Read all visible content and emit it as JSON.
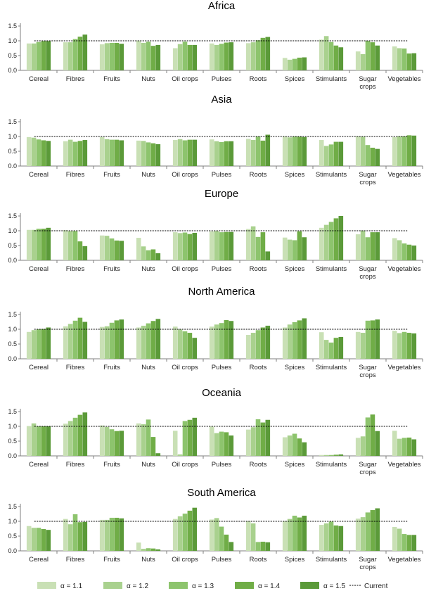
{
  "legend": {
    "series": [
      "α = 1.1",
      "α = 1.2",
      "α = 1.3",
      "α = 1.4",
      "α = 1.5"
    ],
    "current": "Current"
  },
  "colors": [
    "#c9e0b5",
    "#a9d18e",
    "#8dc46d",
    "#70ad47",
    "#5b9a39"
  ],
  "chart_data": [
    {
      "type": "bar",
      "title": "Africa",
      "ylim": [
        0,
        1.5
      ],
      "yticks": [
        "0.0",
        "0.5",
        "1.0",
        "1.5"
      ],
      "reference": 1.0,
      "categories": [
        "Cereal",
        "Fibres",
        "Fruits",
        "Nuts",
        "Oil crops",
        "Pulses",
        "Roots",
        "Spices",
        "Stimulants",
        "Sugar crops",
        "Vegetables"
      ],
      "values": [
        [
          0.91,
          0.91,
          0.96,
          0.99,
          0.99
        ],
        [
          0.95,
          0.95,
          1.06,
          1.14,
          1.21
        ],
        [
          0.88,
          0.92,
          0.93,
          0.93,
          0.9
        ],
        [
          1.01,
          0.93,
          0.97,
          0.83,
          0.86
        ],
        [
          0.75,
          0.89,
          0.97,
          0.86,
          0.86
        ],
        [
          0.91,
          0.86,
          0.9,
          0.94,
          0.95
        ],
        [
          0.92,
          0.95,
          1.02,
          1.1,
          1.13
        ],
        [
          0.42,
          0.36,
          0.39,
          0.43,
          0.44
        ],
        [
          1.04,
          1.16,
          0.96,
          0.84,
          0.78
        ],
        [
          0.64,
          0.55,
          1.0,
          0.95,
          0.84
        ],
        [
          0.81,
          0.75,
          0.74,
          0.57,
          0.58
        ]
      ]
    },
    {
      "type": "bar",
      "title": "Asia",
      "ylim": [
        0,
        1.5
      ],
      "yticks": [
        "0.0",
        "0.5",
        "1.0",
        "1.5"
      ],
      "reference": 1.0,
      "categories": [
        "Cereal",
        "Fibres",
        "Fruits",
        "Nuts",
        "Oil crops",
        "Pulses",
        "Roots",
        "Spices",
        "Stimulants",
        "Sugar crops",
        "Vegetables"
      ],
      "values": [
        [
          0.98,
          0.96,
          0.9,
          0.87,
          0.85
        ],
        [
          0.84,
          0.89,
          0.82,
          0.85,
          0.88
        ],
        [
          0.98,
          0.91,
          0.89,
          0.89,
          0.87
        ],
        [
          0.86,
          0.85,
          0.8,
          0.77,
          0.74
        ],
        [
          0.88,
          0.91,
          0.87,
          0.89,
          0.89
        ],
        [
          0.9,
          0.84,
          0.81,
          0.84,
          0.84
        ],
        [
          0.92,
          0.88,
          1.0,
          0.86,
          1.06
        ],
        [
          1.0,
          0.97,
          1.0,
          0.99,
          0.98
        ],
        [
          0.88,
          0.68,
          0.73,
          0.82,
          0.82
        ],
        [
          1.01,
          0.99,
          0.71,
          0.62,
          0.58
        ],
        [
          0.98,
          1.01,
          1.01,
          1.04,
          1.03
        ]
      ]
    },
    {
      "type": "bar",
      "title": "Europe",
      "ylim": [
        0,
        1.5
      ],
      "yticks": [
        "0.0",
        "0.5",
        "1.0",
        "1.5"
      ],
      "reference": 1.0,
      "categories": [
        "Cereal",
        "Fibres",
        "Fruits",
        "Nuts",
        "Oil crops",
        "Pulses",
        "Roots",
        "Spices",
        "Stimulants",
        "Sugar crops",
        "Vegetables"
      ],
      "values": [
        [
          1.03,
          1.03,
          1.07,
          1.07,
          1.1
        ],
        [
          1.02,
          0.99,
          0.99,
          0.64,
          0.48
        ],
        [
          0.84,
          0.83,
          0.74,
          0.67,
          0.66
        ],
        [
          0.76,
          0.47,
          0.34,
          0.37,
          0.24
        ],
        [
          0.95,
          0.92,
          0.94,
          0.89,
          0.93
        ],
        [
          0.98,
          0.99,
          0.95,
          0.96,
          0.96
        ],
        [
          1.06,
          1.15,
          0.79,
          0.95,
          0.3
        ],
        [
          0.77,
          0.7,
          0.68,
          0.98,
          0.78
        ],
        [
          1.1,
          1.2,
          1.3,
          1.42,
          1.5
        ],
        [
          0.88,
          1.01,
          0.78,
          0.95,
          0.95
        ],
        [
          0.75,
          0.68,
          0.57,
          0.53,
          0.5
        ]
      ]
    },
    {
      "type": "bar",
      "title": "North America",
      "ylim": [
        0,
        1.5
      ],
      "yticks": [
        "0.0",
        "0.5",
        "1.0",
        "1.5"
      ],
      "reference": 1.0,
      "categories": [
        "Cereal",
        "Fibres",
        "Fruits",
        "Nuts",
        "Oil crops",
        "Pulses",
        "Roots",
        "Spices",
        "Stimulants",
        "Sugar crops",
        "Vegetables"
      ],
      "values": [
        [
          0.91,
          0.97,
          1.0,
          1.01,
          1.06
        ],
        [
          1.1,
          1.18,
          1.29,
          1.39,
          1.25
        ],
        [
          1.08,
          1.1,
          1.22,
          1.3,
          1.33
        ],
        [
          1.06,
          1.12,
          1.2,
          1.28,
          1.35
        ],
        [
          1.09,
          0.99,
          0.93,
          0.88,
          0.71
        ],
        [
          1.09,
          1.16,
          1.21,
          1.31,
          1.28
        ],
        [
          0.81,
          0.88,
          0.97,
          1.06,
          1.12
        ],
        [
          1.06,
          1.16,
          1.24,
          1.3,
          1.37
        ],
        [
          0.9,
          0.64,
          0.55,
          0.71,
          0.74
        ],
        [
          0.91,
          0.88,
          1.29,
          1.3,
          1.33
        ],
        [
          0.95,
          0.87,
          0.91,
          0.88,
          0.86
        ]
      ]
    },
    {
      "type": "bar",
      "title": "Oceania",
      "ylim": [
        0,
        1.5
      ],
      "yticks": [
        "0.0",
        "0.5",
        "1.0",
        "1.5"
      ],
      "reference": 1.0,
      "categories": [
        "Cereal",
        "Fibres",
        "Fruits",
        "Nuts",
        "Oil crops",
        "Pulses",
        "Roots",
        "Spices",
        "Stimulants",
        "Sugar crops",
        "Vegetables"
      ],
      "values": [
        [
          1.01,
          1.1,
          1.0,
          1.0,
          1.0
        ],
        [
          1.09,
          1.18,
          1.29,
          1.39,
          1.47
        ],
        [
          1.03,
          0.98,
          0.9,
          0.84,
          0.85
        ],
        [
          1.1,
          1.07,
          1.23,
          0.64,
          0.09
        ],
        [
          0.85,
          0.05,
          1.18,
          1.22,
          1.29
        ],
        [
          0.99,
          0.77,
          0.82,
          0.8,
          0.69
        ],
        [
          0.89,
          0.97,
          1.24,
          1.13,
          1.22
        ],
        [
          0.63,
          0.69,
          0.75,
          0.59,
          0.46
        ],
        [
          0.03,
          0.03,
          0.03,
          0.04,
          0.05
        ],
        [
          0.61,
          0.66,
          1.3,
          1.4,
          0.84
        ],
        [
          0.85,
          0.58,
          0.61,
          0.62,
          0.56
        ]
      ]
    },
    {
      "type": "bar",
      "title": "South America",
      "ylim": [
        0,
        1.5
      ],
      "yticks": [
        "0.0",
        "0.5",
        "1.0",
        "1.5"
      ],
      "reference": 1.0,
      "categories": [
        "Cereal",
        "Fibres",
        "Fruits",
        "Nuts",
        "Oil crops",
        "Pulses",
        "Roots",
        "Spices",
        "Stimulants",
        "Sugar crops",
        "Vegetables"
      ],
      "values": [
        [
          0.84,
          0.78,
          0.78,
          0.74,
          0.71
        ],
        [
          1.08,
          0.9,
          1.24,
          0.97,
          0.98
        ],
        [
          1.05,
          1.05,
          1.12,
          1.12,
          1.1
        ],
        [
          0.28,
          0.07,
          0.09,
          0.08,
          0.05
        ],
        [
          1.08,
          1.17,
          1.26,
          1.36,
          1.46
        ],
        [
          1.06,
          1.11,
          0.82,
          0.55,
          0.3
        ],
        [
          1.01,
          0.93,
          0.3,
          0.31,
          0.29
        ],
        [
          1.01,
          1.08,
          1.19,
          1.13,
          1.19
        ],
        [
          0.88,
          0.93,
          0.99,
          0.86,
          0.84
        ],
        [
          1.09,
          1.14,
          1.3,
          1.38,
          1.44
        ],
        [
          0.81,
          0.75,
          0.57,
          0.54,
          0.54
        ]
      ]
    }
  ]
}
